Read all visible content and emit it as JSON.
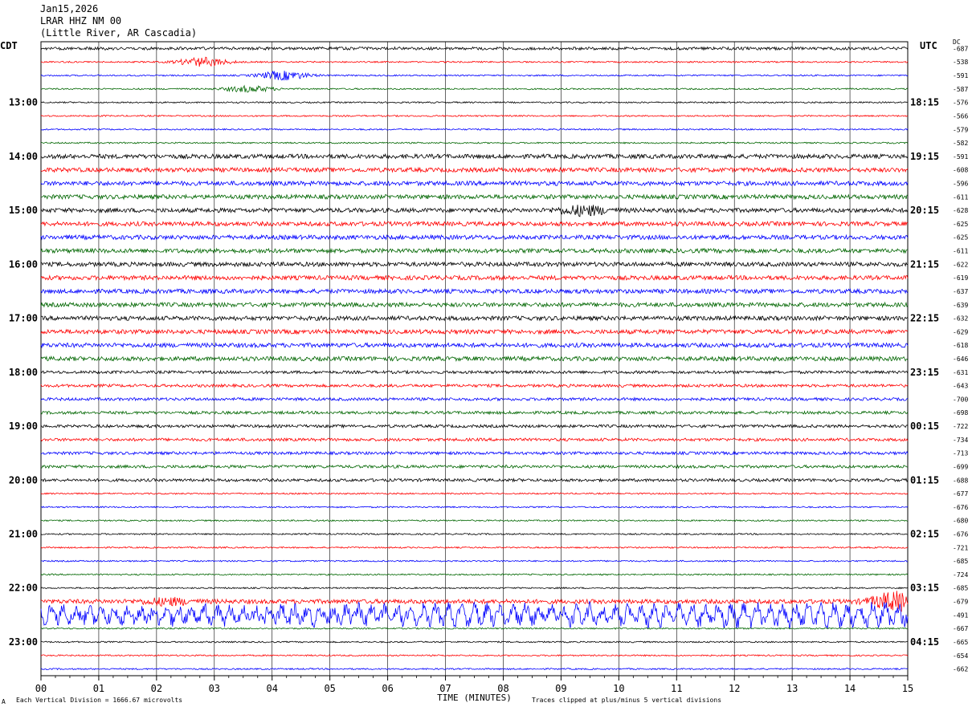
{
  "header": {
    "date": "Jan15,2026",
    "station": "LRAR HHZ NM 00",
    "location": "(Little River, AR Cascadia)"
  },
  "left_axis_label": "CDT",
  "right_axis_label": "UTC",
  "dc_label": "DC",
  "footer": {
    "left_mark": "A",
    "vertical_division": "Each Vertical Division = 1666.67 microvolts",
    "clipping_note": "Traces clipped at plus/minus 5 vertical divisions"
  },
  "colors": {
    "cycle": [
      "#000000",
      "#ff0000",
      "#0000ff",
      "#006600"
    ],
    "grid": "#000000",
    "background": "#ffffff"
  },
  "chart_data": {
    "type": "line",
    "title": "",
    "xlabel": "TIME (MINUTES)",
    "ylabel": "",
    "x_ticks": [
      "00",
      "01",
      "02",
      "03",
      "04",
      "05",
      "06",
      "07",
      "08",
      "09",
      "10",
      "11",
      "12",
      "13",
      "14",
      "15"
    ],
    "xlim": [
      0,
      15
    ],
    "left_hour_labels": [
      "13:00",
      "14:00",
      "15:00",
      "16:00",
      "17:00",
      "18:00",
      "19:00",
      "20:00",
      "21:00",
      "22:00",
      "23:00"
    ],
    "right_hour_labels": [
      "18:15",
      "19:15",
      "20:15",
      "21:15",
      "22:15",
      "23:15",
      "00:15",
      "01:15",
      "02:15",
      "03:15",
      "04:15"
    ],
    "first_labeled_trace": 4,
    "traces_per_hour": 4,
    "dc_offsets": [
      "-687",
      "-538",
      "-591",
      "-587",
      "-576",
      "-566",
      "-579",
      "-582",
      "-591",
      "-608",
      "-596",
      "-611",
      "-628",
      "-625",
      "-625",
      "-611",
      "-622",
      "-619",
      "-637",
      "-639",
      "-632",
      "-629",
      "-618",
      "-646",
      "-631",
      "-643",
      "-700",
      "-698",
      "-722",
      "-734",
      "-713",
      "-699",
      "-688",
      "-677",
      "-676",
      "-680",
      "-676",
      "-721",
      "-685",
      "-724",
      "-685",
      "-679",
      "-491",
      "-667",
      "-665",
      "-654",
      "-662"
    ],
    "trace_activity": [
      2,
      1,
      1,
      1,
      1,
      1,
      1,
      1,
      3,
      3,
      3,
      3,
      3,
      3,
      3,
      3,
      3,
      3,
      3,
      3,
      3,
      3,
      3,
      3,
      2,
      2,
      2,
      2,
      2,
      2,
      2,
      2,
      2,
      1,
      1,
      1,
      1,
      1,
      1,
      1,
      1,
      3,
      9,
      1,
      1,
      1,
      1
    ],
    "events": [
      {
        "trace": 1,
        "minute": 2.8,
        "amplitude": 3
      },
      {
        "trace": 2,
        "minute": 4.2,
        "amplitude": 3
      },
      {
        "trace": 3,
        "minute": 3.6,
        "amplitude": 2
      },
      {
        "trace": 12,
        "minute": 9.4,
        "amplitude": 3
      },
      {
        "trace": 41,
        "minute": 2.2,
        "amplitude": 2
      },
      {
        "trace": 41,
        "minute": 14.8,
        "amplitude": 6
      }
    ],
    "clip_divisions": 5,
    "units": "microvolts"
  }
}
